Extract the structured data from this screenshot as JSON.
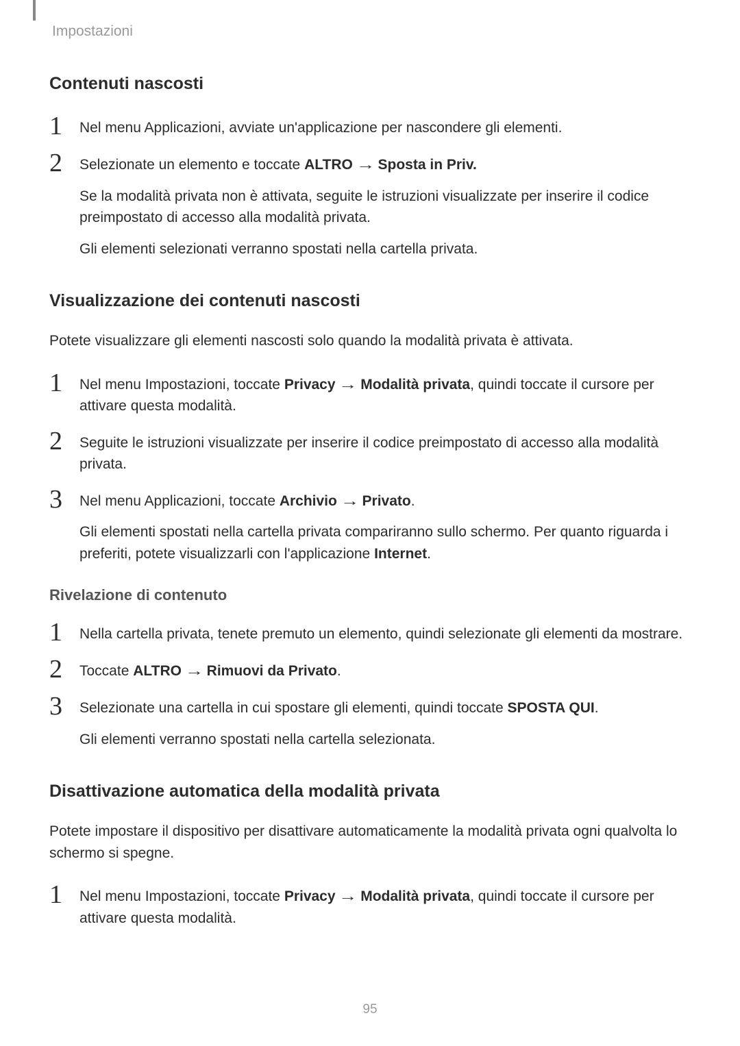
{
  "header": {
    "breadcrumb": "Impostazioni"
  },
  "section1": {
    "title": "Contenuti nascosti",
    "steps": [
      {
        "num": "1",
        "lines": [
          "Nel menu Applicazioni, avviate un'applicazione per nascondere gli elementi."
        ]
      },
      {
        "num": "2",
        "lines": [
          "Selezionate un elemento e toccate <b>ALTRO</b> → <b>Sposta in Priv.</b>",
          "Se la modalità privata non è attivata, seguite le istruzioni visualizzate per inserire il codice preimpostato di accesso alla modalità privata.",
          "Gli elementi selezionati verranno spostati nella cartella privata."
        ]
      }
    ]
  },
  "section2": {
    "title": "Visualizzazione dei contenuti nascosti",
    "intro": "Potete visualizzare gli elementi nascosti solo quando la modalità privata è attivata.",
    "steps": [
      {
        "num": "1",
        "lines": [
          "Nel menu Impostazioni, toccate <b>Privacy</b> → <b>Modalità privata</b>, quindi toccate il cursore per attivare questa modalità."
        ]
      },
      {
        "num": "2",
        "lines": [
          "Seguite le istruzioni visualizzate per inserire il codice preimpostato di accesso alla modalità privata."
        ]
      },
      {
        "num": "3",
        "lines": [
          "Nel menu Applicazioni, toccate <b>Archivio</b> → <b>Privato</b>.",
          "Gli elementi spostati nella cartella privata compariranno sullo schermo. Per quanto riguarda i preferiti, potete visualizzarli con l'applicazione <b>Internet</b>."
        ]
      }
    ]
  },
  "section3": {
    "title": "Rivelazione di contenuto",
    "steps": [
      {
        "num": "1",
        "lines": [
          "Nella cartella privata, tenete premuto un elemento, quindi selezionate gli elementi da mostrare."
        ]
      },
      {
        "num": "2",
        "lines": [
          "Toccate <b>ALTRO</b> → <b>Rimuovi da Privato</b>."
        ]
      },
      {
        "num": "3",
        "lines": [
          "Selezionate una cartella in cui spostare gli elementi, quindi toccate <b>SPOSTA QUI</b>.",
          "Gli elementi verranno spostati nella cartella selezionata."
        ]
      }
    ]
  },
  "section4": {
    "title": "Disattivazione automatica della modalità privata",
    "intro": "Potete impostare il dispositivo per disattivare automaticamente la modalità privata ogni qualvolta lo schermo si spegne.",
    "steps": [
      {
        "num": "1",
        "lines": [
          "Nel menu Impostazioni, toccate <b>Privacy</b> → <b>Modalità privata</b>, quindi toccate il cursore per attivare questa modalità."
        ]
      }
    ]
  },
  "pageNumber": "95"
}
